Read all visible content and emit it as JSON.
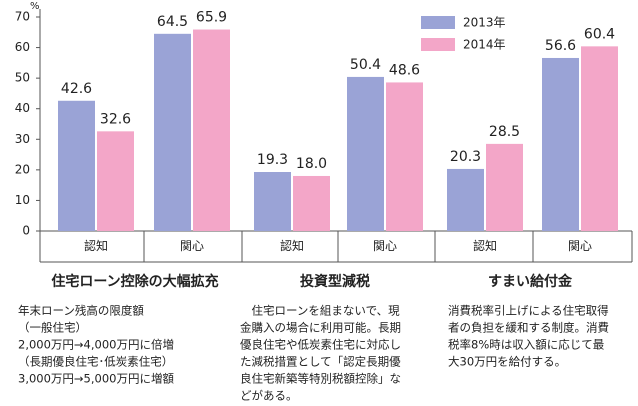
{
  "chart_data": {
    "type": "bar",
    "y_unit": "%",
    "categories": [
      "認知",
      "関心",
      "認知",
      "関心",
      "認知",
      "関心"
    ],
    "groups": [
      "住宅ローン控除の大幅拡充",
      "投資型減税",
      "すまい給付金"
    ],
    "notes": [
      [
        "年末ローン残高の限度額",
        "（一般住宅）",
        "2,000万円→4,000万円に倍増",
        "（長期優良住宅･低炭素住宅）",
        "3,000万円→5,000万円に増額"
      ],
      [
        "　住宅ローンを組まないで、現",
        "金購入の場合に利用可能。長期",
        "優良住宅や低炭素住宅に対応し",
        "た減税措置として「認定長期優",
        "良住宅新築等特別税額控除」な",
        "どがある。"
      ],
      [
        "消費税率引上げによる住宅取得",
        "者の負担を緩和する制度。消費",
        "税率8%時は収入額に応じて最",
        "大30万円を給付する。"
      ]
    ],
    "series": [
      {
        "name": "2013年",
        "color": "#9aa3d6",
        "values": [
          42.6,
          64.5,
          19.3,
          50.4,
          20.3,
          56.6
        ],
        "value_labels": [
          "42.6",
          "64.5",
          "19.3",
          "50.4",
          "20.3",
          "56.6"
        ]
      },
      {
        "name": "2014年",
        "color": "#f3a6c8",
        "values": [
          32.6,
          65.9,
          18.0,
          48.6,
          28.5,
          60.4
        ],
        "value_labels": [
          "32.6",
          "65.9",
          "18.0",
          "48.6",
          "28.5",
          "60.4"
        ]
      }
    ],
    "ylim": [
      0,
      70
    ],
    "yticks": [
      0,
      10,
      20,
      30,
      40,
      50,
      60,
      70
    ]
  }
}
